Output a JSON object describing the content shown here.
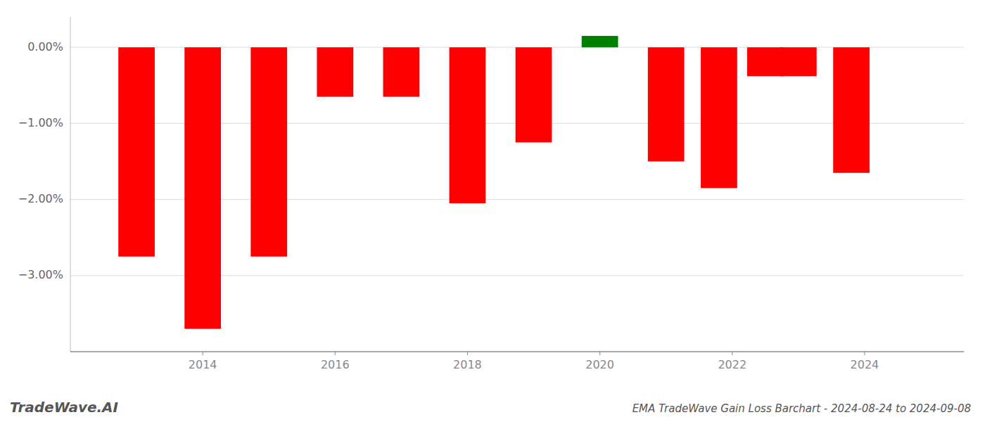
{
  "chart_data": {
    "type": "bar",
    "title": "EMA TradeWave Gain Loss Barchart - 2024-08-24 to 2024-09-08",
    "annotations": [
      "TradeWave.AI"
    ],
    "x": [
      2013,
      2014,
      2015,
      2016,
      2017,
      2018,
      2019,
      2020,
      2021,
      2021.8,
      2022.5,
      2023,
      2023.8
    ],
    "values": [
      -2.75,
      -3.7,
      -2.75,
      -0.65,
      -0.65,
      -2.05,
      -1.25,
      0.15,
      -1.5,
      -1.85,
      -0.38,
      -0.38,
      -1.65
    ],
    "colors": [
      "#ff0000",
      "#ff0000",
      "#ff0000",
      "#ff0000",
      "#ff0000",
      "#ff0000",
      "#ff0000",
      "#008000",
      "#ff0000",
      "#ff0000",
      "#ff0000",
      "#ff0000",
      "#ff0000"
    ],
    "xlim": [
      2012.0,
      2025.5
    ],
    "xticks": [
      2014,
      2016,
      2018,
      2020,
      2022,
      2024
    ],
    "ylim": [
      -4.0,
      0.4
    ],
    "yticks": [
      {
        "value": 0.0,
        "label": "0.00%"
      },
      {
        "value": -1.0,
        "label": "−1.00%"
      },
      {
        "value": -2.0,
        "label": "−2.00%"
      },
      {
        "value": -3.0,
        "label": "−3.00%"
      }
    ],
    "grid": true
  }
}
